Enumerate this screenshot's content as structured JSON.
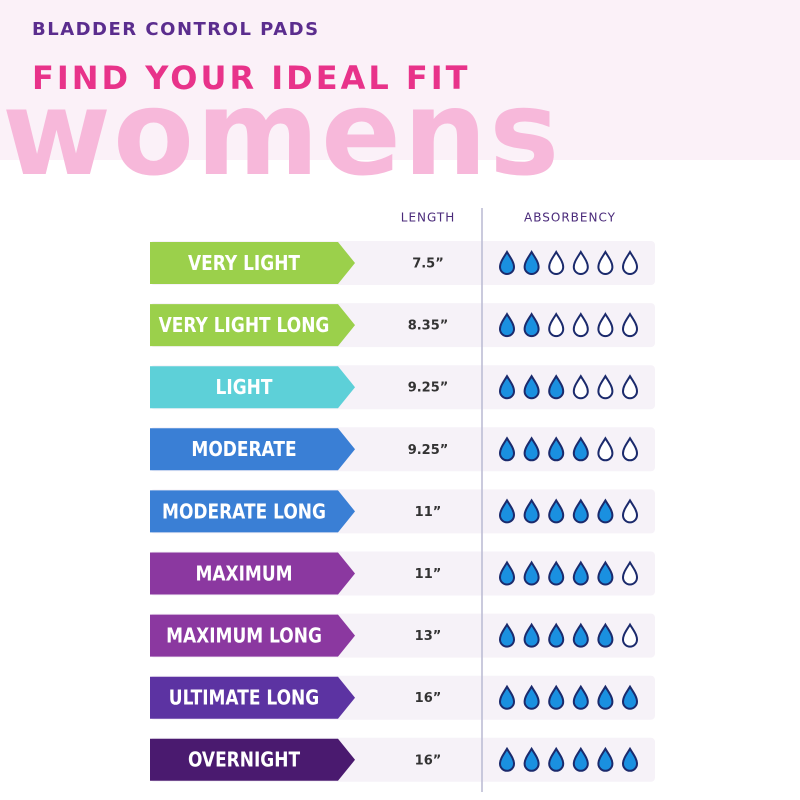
{
  "header": {
    "category": "BLADDER CONTROL PADS",
    "title": "FIND YOUR IDEAL FIT",
    "audience": "womens"
  },
  "table": {
    "columns": [
      "LENGTH",
      "ABSORBENCY"
    ],
    "absorbency_max": 6,
    "rows": [
      {
        "name": "VERY LIGHT",
        "length": "7.5”",
        "absorbency": 2,
        "color": "#9bd04b"
      },
      {
        "name": "VERY LIGHT LONG",
        "length": "8.35”",
        "absorbency": 2,
        "color": "#9bd04b"
      },
      {
        "name": "LIGHT",
        "length": "9.25”",
        "absorbency": 3,
        "color": "#5dd0d8"
      },
      {
        "name": "MODERATE",
        "length": "9.25”",
        "absorbency": 4,
        "color": "#3a7fd5"
      },
      {
        "name": "MODERATE LONG",
        "length": "11”",
        "absorbency": 5,
        "color": "#3a7fd5"
      },
      {
        "name": "MAXIMUM",
        "length": "11”",
        "absorbency": 5,
        "color": "#8b38a0"
      },
      {
        "name": "MAXIMUM LONG",
        "length": "13”",
        "absorbency": 5,
        "color": "#8b38a0"
      },
      {
        "name": "ULTIMATE LONG",
        "length": "16”",
        "absorbency": 6,
        "color": "#5c33a2"
      },
      {
        "name": "OVERNIGHT",
        "length": "16”",
        "absorbency": 6,
        "color": "#4a1a6f"
      }
    ]
  }
}
